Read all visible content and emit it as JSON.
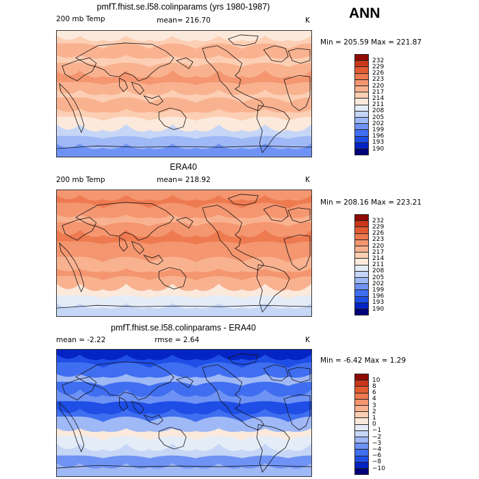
{
  "season": "ANN",
  "palettes": {
    "abs": [
      "#00007a",
      "#0524c4",
      "#1f4ee6",
      "#3f6ef0",
      "#6f93f4",
      "#9fb8f6",
      "#c6d6f6",
      "#e4ecf8",
      "#fbe9dc",
      "#fccfb4",
      "#f9b290",
      "#f49670",
      "#ee7a50",
      "#e25c32",
      "#c9381a",
      "#8e0c04"
    ],
    "diff": [
      "#00007a",
      "#0524c4",
      "#1f4ee6",
      "#3f6ef0",
      "#6f93f4",
      "#9fb8f6",
      "#c6d6f6",
      "#e4ecf8",
      "#fbe9dc",
      "#fccfb4",
      "#f9b290",
      "#f49670",
      "#ee7a50",
      "#e25c32",
      "#c9381a",
      "#8e0c04"
    ]
  },
  "panels": [
    {
      "title": "pmfT.fhist.se.l58.colinparams (yrs 1980-1987)",
      "left_label": "200 mb Temp",
      "mean_label": "mean= 216.70",
      "rmse_label": "",
      "units": "K",
      "minmax": "Min = 205.59 Max = 221.87",
      "levels": [
        "232",
        "229",
        "226",
        "223",
        "220",
        "217",
        "214",
        "211",
        "208",
        "205",
        "202",
        "199",
        "196",
        "193",
        "190"
      ],
      "bands": [
        "#6f93f4",
        "#9fb8f6",
        "#c6d6f6",
        "#fbe9dc",
        "#fccfb4",
        "#f9b290",
        "#fccfb4",
        "#f9b290",
        "#f49670",
        "#f9b290",
        "#fccfb4",
        "#f9b290",
        "#fccfb4",
        "#fbe9dc"
      ]
    },
    {
      "title": "ERA40",
      "left_label": "200 mb Temp",
      "mean_label": "mean= 218.92",
      "rmse_label": "",
      "units": "K",
      "minmax": "Min = 208.16 Max = 223.21",
      "levels": [
        "232",
        "229",
        "226",
        "223",
        "220",
        "217",
        "214",
        "211",
        "208",
        "205",
        "202",
        "199",
        "196",
        "193",
        "190"
      ],
      "bands": [
        "#c6d6f6",
        "#e4ecf8",
        "#fbe9dc",
        "#f9b290",
        "#f49670",
        "#f9b290",
        "#f49670",
        "#f49670",
        "#ee7a50",
        "#f49670",
        "#f9b290",
        "#f49670",
        "#ee7a50",
        "#f49670"
      ]
    },
    {
      "title": "pmfT.fhist.se.l58.colinparams - ERA40",
      "left_label": "mean =   -2.22",
      "mean_label": "rmse =    2.64",
      "rmse_label": "",
      "units": "K",
      "minmax": "Min =  -6.42 Max =    1.29",
      "levels": [
        "10",
        "8",
        "6",
        "4",
        "3",
        "2",
        "1",
        "0",
        "−1",
        "−2",
        "−3",
        "−4",
        "−6",
        "−8",
        "−10"
      ],
      "bands": [
        "#9fb8f6",
        "#6f93f4",
        "#c6d6f6",
        "#e4ecf8",
        "#fbe9dc",
        "#9fb8f6",
        "#3f6ef0",
        "#1f4ee6",
        "#6f93f4",
        "#3f6ef0",
        "#9fb8f6",
        "#3f6ef0",
        "#1f4ee6",
        "#0524c4"
      ]
    }
  ]
}
